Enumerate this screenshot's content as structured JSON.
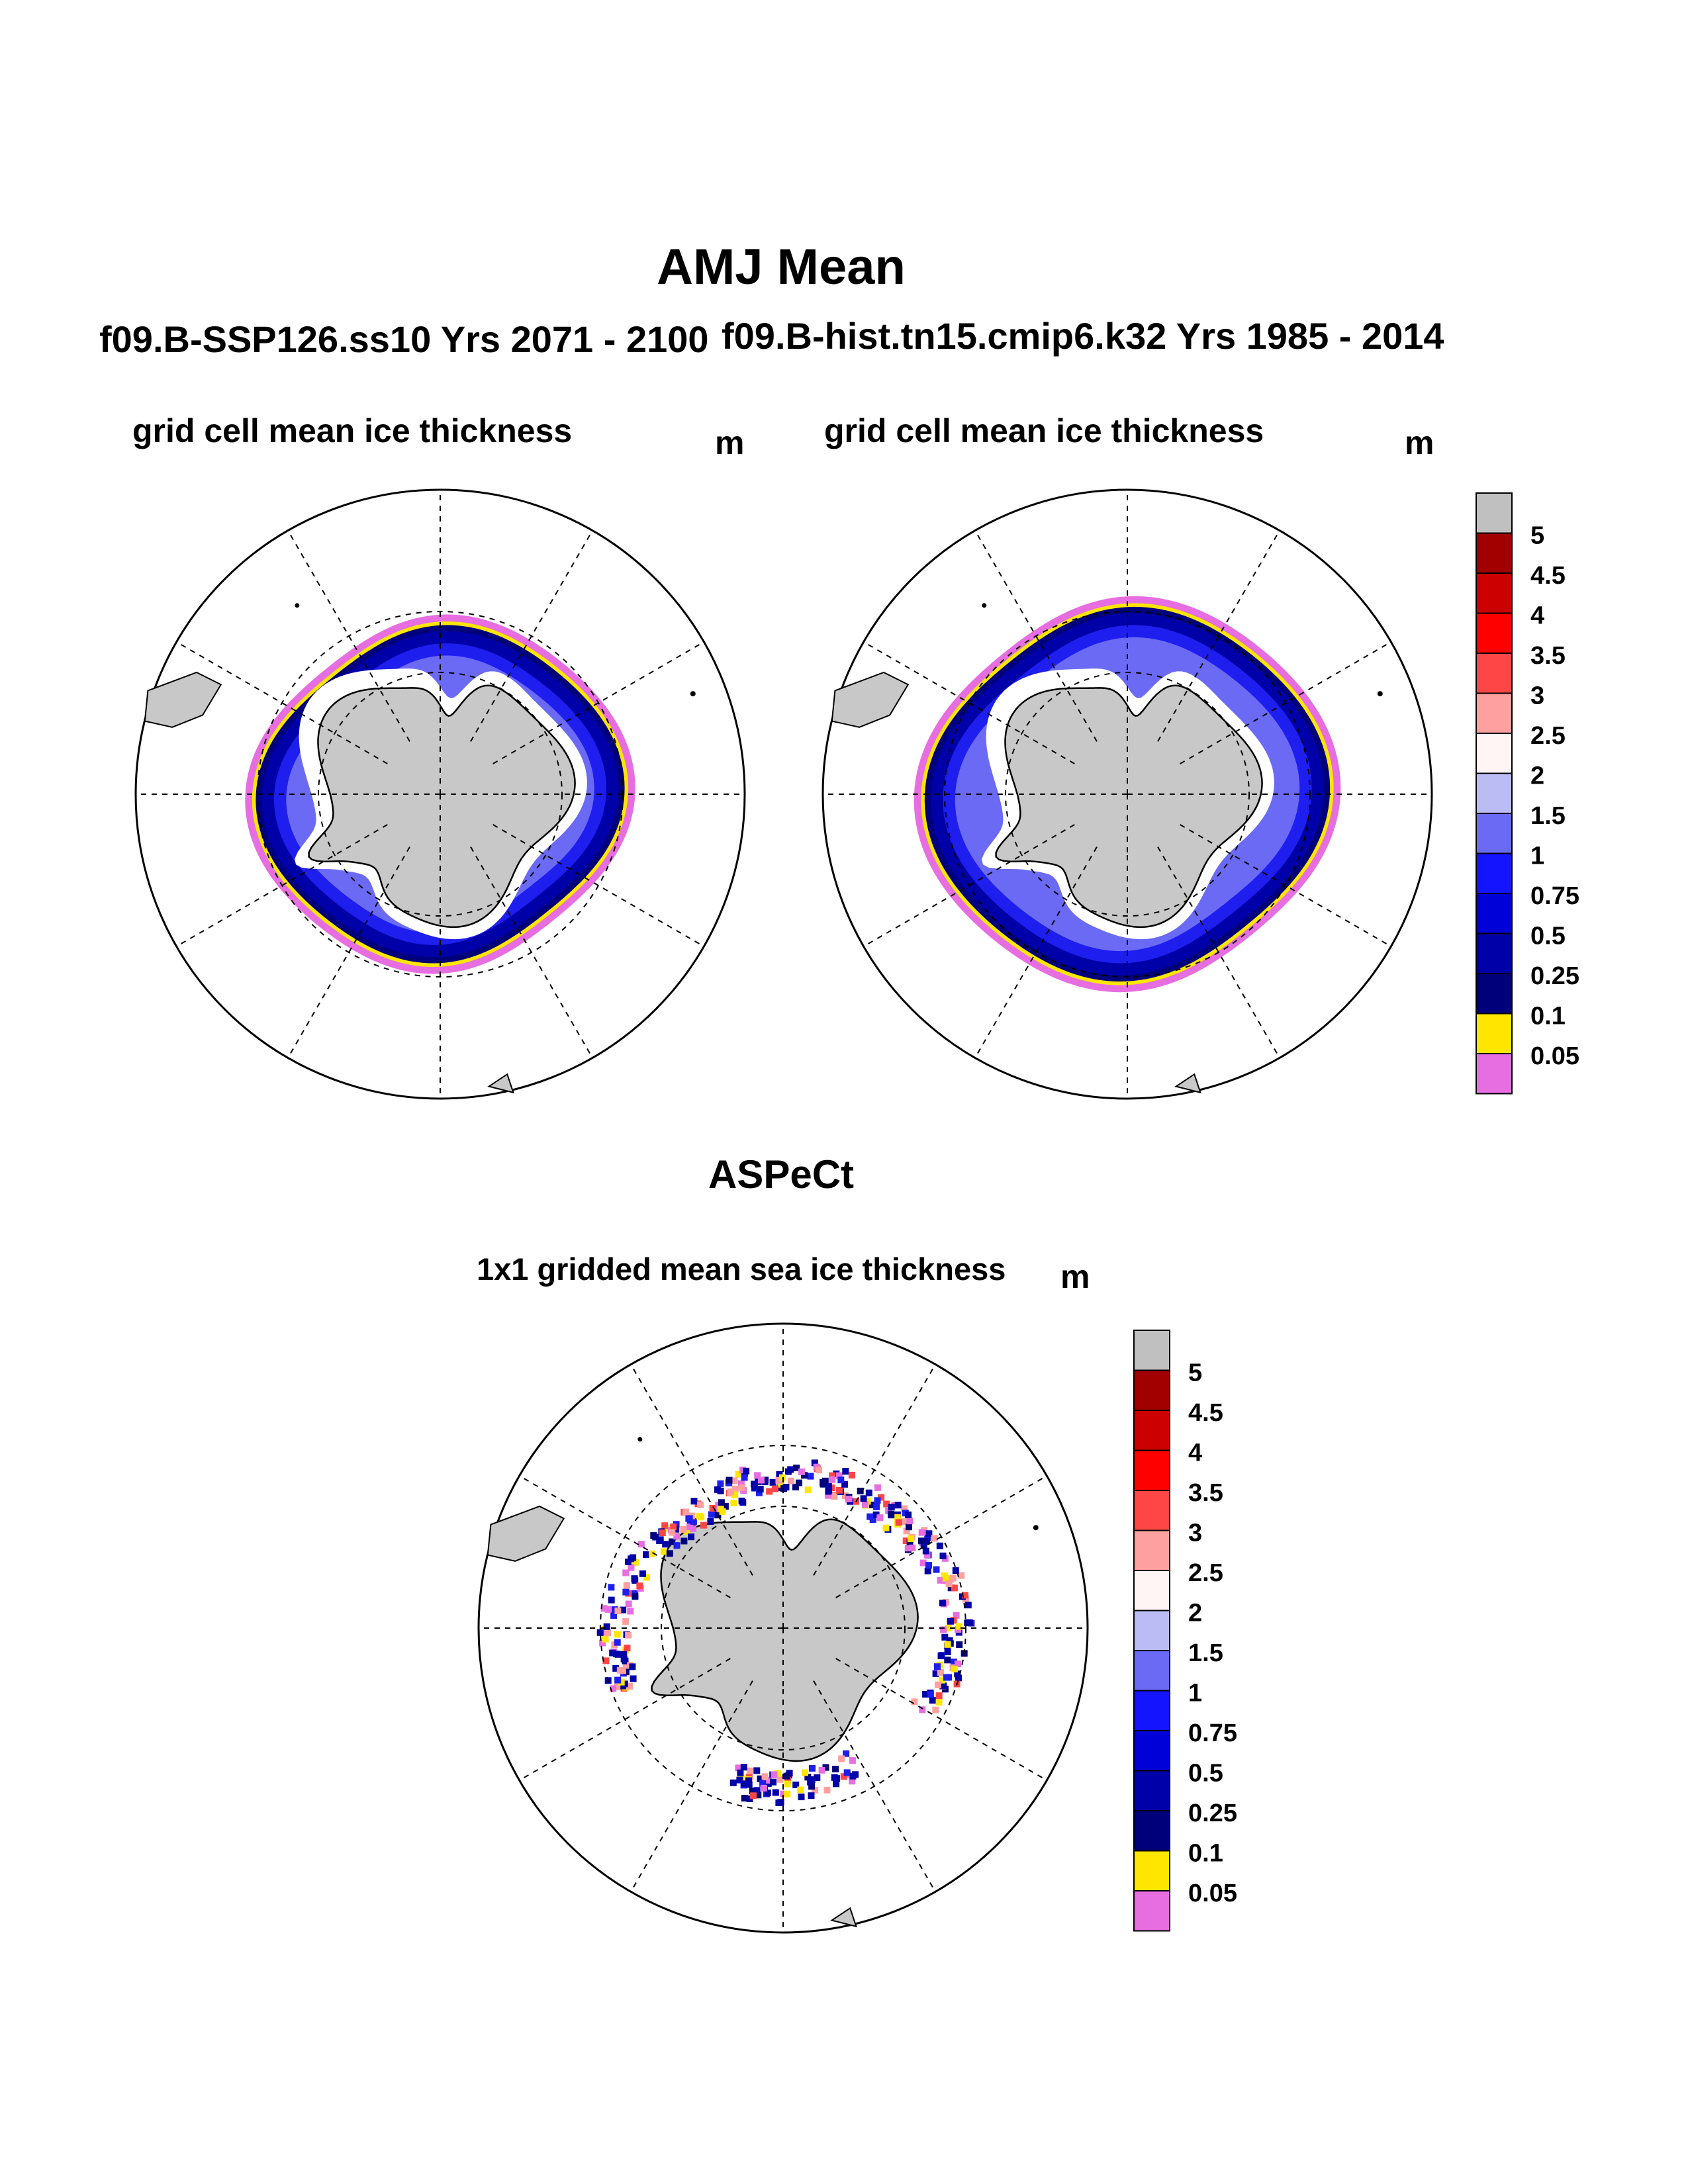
{
  "chart_data": [
    {
      "type": "heatmap",
      "title": "AMJ Mean",
      "subtitle": "f09.B-SSP126.ss10  Yrs 2071 - 2100",
      "variable": "grid cell mean ice thickness",
      "units": "m",
      "projection": "south polar stereographic",
      "ice_edge_latitude_deg": -62,
      "inner_thick_band_value_m": 0.5,
      "edge_band_values_m": [
        0.05,
        0.1,
        0.25
      ]
    },
    {
      "type": "heatmap",
      "subtitle": "f09.B-hist.tn15.cmip6.k32  Yrs 1985 - 2014",
      "variable": "grid cell mean ice thickness",
      "units": "m",
      "projection": "south polar stereographic",
      "ice_edge_latitude_deg": -59,
      "inner_thick_band_value_m": 0.5,
      "edge_band_values_m": [
        0.05,
        0.1,
        0.25
      ]
    },
    {
      "type": "heatmap",
      "title": "ASPeCt",
      "variable": "1x1 gridded mean sea ice thickness",
      "units": "m",
      "projection": "south polar stereographic",
      "observation_track_latitude_deg": -64
    }
  ],
  "colorbar": {
    "labels": [
      "5",
      "4.5",
      "4",
      "3.5",
      "3",
      "2.5",
      "2",
      "1.5",
      "1",
      "0.75",
      "0.5",
      "0.25",
      "0.1",
      "0.05"
    ],
    "colors": [
      "#c0c0c0",
      "#a00000",
      "#cc0000",
      "#ff0000",
      "#ff4646",
      "#ffa0a0",
      "#fff5f5",
      "#bcbcf5",
      "#6a6af5",
      "#1414ff",
      "#0000d8",
      "#0000a8",
      "#00007a",
      "#ffe600",
      "#e66ee0"
    ]
  },
  "colors": {
    "land": "#c8c8c8",
    "ocean": "#ffffff",
    "deep_blue": "#0000a8",
    "mid_blue": "#1e1eee",
    "light_blue": "#6a6af5",
    "yellow": "#ffe600",
    "pink": "#e66ee0"
  }
}
